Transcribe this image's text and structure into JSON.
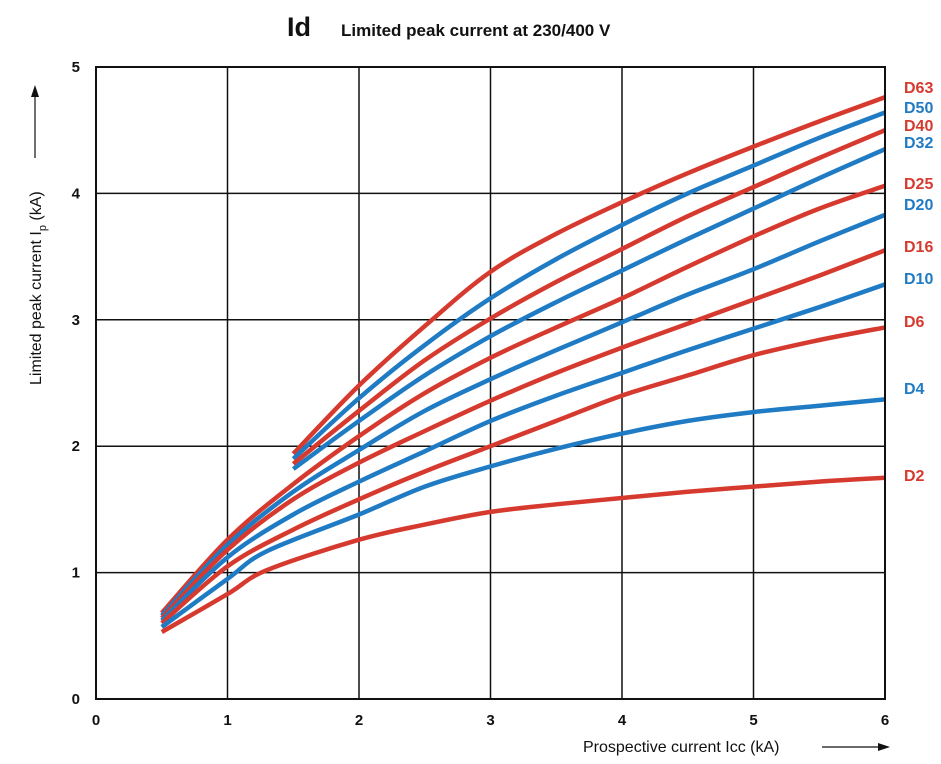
{
  "chart_data": {
    "type": "line",
    "title": "Id",
    "subtitle": "Limited peak current at 230/400 V",
    "xlabel": "Prospective current Icc (kA)",
    "ylabel": "Limited peak current I",
    "ylabel_sub": "p",
    "ylabel_unit": " (kA)",
    "xlim": [
      0,
      6
    ],
    "ylim": [
      0,
      5
    ],
    "xticks": [
      "0",
      "1",
      "2",
      "3",
      "4",
      "5",
      "6"
    ],
    "yticks": [
      "0",
      "1",
      "2",
      "3",
      "4",
      "5"
    ],
    "grid": true,
    "colors": {
      "red": "#d63a2f",
      "blue": "#1f7bc4"
    },
    "series": [
      {
        "name": "D63",
        "color": "#d63a2f",
        "points": [
          [
            1.5,
            1.94
          ],
          [
            2,
            2.48
          ],
          [
            2.5,
            2.95
          ],
          [
            3,
            3.38
          ],
          [
            3.5,
            3.68
          ],
          [
            4,
            3.93
          ],
          [
            4.5,
            4.16
          ],
          [
            5,
            4.37
          ],
          [
            5.5,
            4.57
          ],
          [
            6,
            4.76
          ]
        ]
      },
      {
        "name": "D50",
        "color": "#1f7bc4",
        "points": [
          [
            1.5,
            1.9
          ],
          [
            2,
            2.38
          ],
          [
            2.5,
            2.8
          ],
          [
            3,
            3.17
          ],
          [
            3.5,
            3.48
          ],
          [
            4,
            3.75
          ],
          [
            4.5,
            4
          ],
          [
            5,
            4.22
          ],
          [
            5.5,
            4.44
          ],
          [
            6,
            4.64
          ]
        ]
      },
      {
        "name": "D40",
        "color": "#d63a2f",
        "points": [
          [
            1.5,
            1.86
          ],
          [
            2,
            2.28
          ],
          [
            2.5,
            2.68
          ],
          [
            3,
            3.01
          ],
          [
            3.5,
            3.3
          ],
          [
            4,
            3.56
          ],
          [
            4.5,
            3.82
          ],
          [
            5,
            4.05
          ],
          [
            5.5,
            4.28
          ],
          [
            6,
            4.5
          ]
        ]
      },
      {
        "name": "D32",
        "color": "#1f7bc4",
        "points": [
          [
            1.5,
            1.82
          ],
          [
            2,
            2.2
          ],
          [
            2.5,
            2.56
          ],
          [
            3,
            2.87
          ],
          [
            3.5,
            3.14
          ],
          [
            4,
            3.39
          ],
          [
            4.5,
            3.64
          ],
          [
            5,
            3.88
          ],
          [
            5.5,
            4.12
          ],
          [
            6,
            4.35
          ]
        ]
      },
      {
        "name": "D25",
        "color": "#d63a2f",
        "points": [
          [
            0.5,
            0.68
          ],
          [
            1,
            1.26
          ],
          [
            1.5,
            1.7
          ],
          [
            2,
            2.08
          ],
          [
            2.5,
            2.42
          ],
          [
            3,
            2.7
          ],
          [
            3.5,
            2.94
          ],
          [
            4,
            3.17
          ],
          [
            4.5,
            3.42
          ],
          [
            5,
            3.66
          ],
          [
            5.5,
            3.88
          ],
          [
            6,
            4.06
          ]
        ]
      },
      {
        "name": "D20",
        "color": "#1f7bc4",
        "points": [
          [
            0.5,
            0.66
          ],
          [
            1,
            1.22
          ],
          [
            1.5,
            1.64
          ],
          [
            2,
            1.97
          ],
          [
            2.5,
            2.28
          ],
          [
            3,
            2.53
          ],
          [
            3.5,
            2.76
          ],
          [
            4,
            2.98
          ],
          [
            4.5,
            3.2
          ],
          [
            5,
            3.4
          ],
          [
            5.5,
            3.62
          ],
          [
            6,
            3.83
          ]
        ]
      },
      {
        "name": "D16",
        "color": "#d63a2f",
        "points": [
          [
            0.5,
            0.64
          ],
          [
            1,
            1.18
          ],
          [
            1.5,
            1.58
          ],
          [
            2,
            1.87
          ],
          [
            2.5,
            2.12
          ],
          [
            3,
            2.36
          ],
          [
            3.5,
            2.58
          ],
          [
            4,
            2.78
          ],
          [
            4.5,
            2.97
          ],
          [
            5,
            3.16
          ],
          [
            5.5,
            3.35
          ],
          [
            6,
            3.55
          ]
        ]
      },
      {
        "name": "D10",
        "color": "#1f7bc4",
        "points": [
          [
            0.5,
            0.62
          ],
          [
            1,
            1.12
          ],
          [
            1.5,
            1.46
          ],
          [
            2,
            1.72
          ],
          [
            2.5,
            1.96
          ],
          [
            3,
            2.2
          ],
          [
            3.5,
            2.4
          ],
          [
            4,
            2.58
          ],
          [
            4.5,
            2.76
          ],
          [
            5,
            2.93
          ],
          [
            5.5,
            3.1
          ],
          [
            6,
            3.28
          ]
        ]
      },
      {
        "name": "D6",
        "color": "#d63a2f",
        "points": [
          [
            0.5,
            0.6
          ],
          [
            1,
            1.05
          ],
          [
            1.5,
            1.34
          ],
          [
            2,
            1.58
          ],
          [
            2.5,
            1.8
          ],
          [
            3,
            2
          ],
          [
            3.5,
            2.2
          ],
          [
            4,
            2.4
          ],
          [
            4.5,
            2.56
          ],
          [
            5,
            2.72
          ],
          [
            5.5,
            2.84
          ],
          [
            6,
            2.94
          ]
        ]
      },
      {
        "name": "D4",
        "color": "#1f7bc4",
        "points": [
          [
            0.5,
            0.57
          ],
          [
            1,
            0.95
          ],
          [
            1.3,
            1.17
          ],
          [
            2,
            1.46
          ],
          [
            2.5,
            1.68
          ],
          [
            3,
            1.84
          ],
          [
            3.5,
            1.98
          ],
          [
            4,
            2.1
          ],
          [
            4.5,
            2.2
          ],
          [
            5,
            2.27
          ],
          [
            5.5,
            2.32
          ],
          [
            6,
            2.37
          ]
        ]
      },
      {
        "name": "D2",
        "color": "#d63a2f",
        "points": [
          [
            0.5,
            0.53
          ],
          [
            1,
            0.83
          ],
          [
            1.3,
            1.02
          ],
          [
            2,
            1.26
          ],
          [
            2.5,
            1.38
          ],
          [
            3,
            1.48
          ],
          [
            3.5,
            1.54
          ],
          [
            4,
            1.59
          ],
          [
            4.5,
            1.64
          ],
          [
            5,
            1.68
          ],
          [
            5.5,
            1.72
          ],
          [
            6,
            1.75
          ]
        ]
      }
    ]
  }
}
